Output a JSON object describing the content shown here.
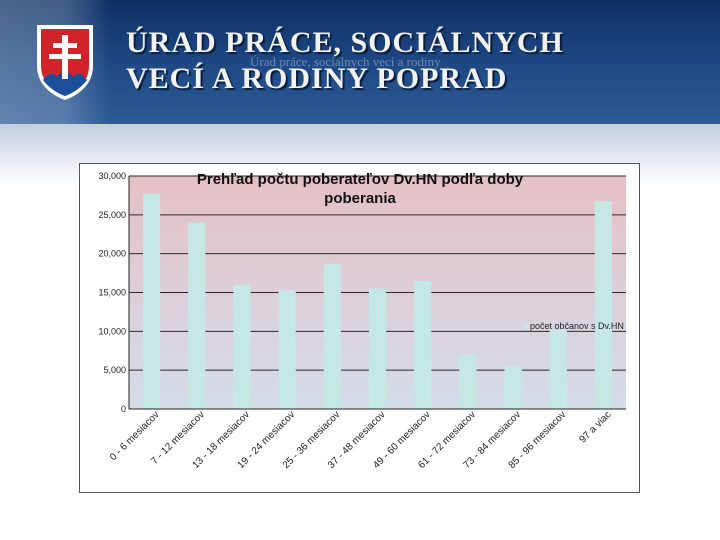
{
  "header": {
    "org_line1": "ÚRAD PRÁCE, SOCIÁLNYCH",
    "org_line2": "VECÍ A RODINY POPRAD",
    "ghost_text": "Úrad práce, sociálnych vecí a rodiny",
    "crest_icon": "slovak-coat-of-arms-icon",
    "colors": {
      "banner": "#1f4a86",
      "crest_red": "#d2232a",
      "crest_blue": "#1b4f9c"
    }
  },
  "chart_data": {
    "type": "bar",
    "title": "Prehľad počtu poberateľov Dv.HN podľa doby poberania",
    "title_line1": "Prehľad počtu poberateľov Dv.HN podľa doby",
    "title_line2": "poberania",
    "categories": [
      "0 - 6 mesiacov",
      "7 - 12 mesiacov",
      "13 - 18 mesiacov",
      "19 - 24 mesiacov",
      "25 - 36 mesiacov",
      "37 - 48 mesiacov",
      "49 - 60 mesiacov",
      "61 - 72 mesiacov",
      "73 - 84 mesiacov",
      "85 - 96 mesiacov",
      "97 a viac"
    ],
    "series": [
      {
        "name": "počet občanov s Dv.HN",
        "values": [
          27700,
          24000,
          16000,
          15300,
          18700,
          15500,
          16500,
          7000,
          5500,
          10200,
          26800
        ]
      }
    ],
    "y_ticks": [
      "30,000",
      "25,000",
      "20,000",
      "15,000",
      "10,000",
      "5,000",
      "0"
    ],
    "ylim": [
      0,
      30000
    ],
    "grid": true,
    "legend_position": "right",
    "colors": {
      "bar": "#c6e8e4",
      "plot_top": "#e5c0c6",
      "plot_bottom": "#d4dde9",
      "grid": "#2a2a2a"
    }
  }
}
